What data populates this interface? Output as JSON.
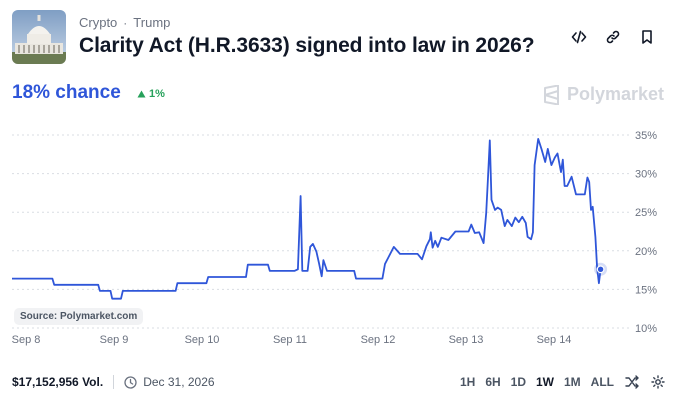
{
  "header": {
    "category": "Crypto",
    "subcategory": "Trump",
    "separator": "·",
    "title": "Clarity Act (H.R.3633) signed into law in 2026?",
    "actions": [
      "embed-icon",
      "link-icon",
      "bookmark-icon"
    ]
  },
  "summary": {
    "chance": "18% chance",
    "delta": "1%",
    "delta_direction": "up",
    "brand": "Polymarket"
  },
  "colors": {
    "accent": "#2f56d9",
    "positive": "#27a15b",
    "grid": "#d9dde3"
  },
  "source_label": "Source: Polymarket.com",
  "footer": {
    "volume": "$17,152,956 Vol.",
    "end_date": "Dec 31, 2026",
    "ranges": [
      "1H",
      "6H",
      "1D",
      "1W",
      "1M",
      "ALL"
    ],
    "active_range": "1W"
  },
  "chart_data": {
    "type": "line",
    "x_ticks": [
      "Sep 8",
      "Sep 9",
      "Sep 10",
      "Sep 11",
      "Sep 12",
      "Sep 13",
      "Sep 14"
    ],
    "y_ticks": [
      "35%",
      "30%",
      "25%",
      "20%",
      "15%",
      "10%"
    ],
    "ylim": [
      10,
      35
    ],
    "xlim": [
      0,
      6.8
    ],
    "grid": "horizontal dashed",
    "series": [
      {
        "points": [
          [
            0,
            16.4
          ],
          [
            0.3,
            16.4
          ],
          [
            0.32,
            15.6
          ],
          [
            0.82,
            15.6
          ],
          [
            0.84,
            14.8
          ],
          [
            0.96,
            14.8
          ],
          [
            0.98,
            13.8
          ],
          [
            1.08,
            13.8
          ],
          [
            1.1,
            14.8
          ],
          [
            1.7,
            14.8
          ],
          [
            1.72,
            15.8
          ],
          [
            2.05,
            15.8
          ],
          [
            2.07,
            16.6
          ],
          [
            2.5,
            16.6
          ],
          [
            2.52,
            18.2
          ],
          [
            2.75,
            18.2
          ],
          [
            2.77,
            17.4
          ],
          [
            3.05,
            17.4
          ],
          [
            3.09,
            17.6
          ],
          [
            3.12,
            27.1
          ],
          [
            3.14,
            17.4
          ],
          [
            3.2,
            17.4
          ],
          [
            3.23,
            20.5
          ],
          [
            3.26,
            20.9
          ],
          [
            3.3,
            19.9
          ],
          [
            3.33,
            18.4
          ],
          [
            3.36,
            16.7
          ],
          [
            3.38,
            18.8
          ],
          [
            3.42,
            17.4
          ],
          [
            3.73,
            17.4
          ],
          [
            3.75,
            16.4
          ],
          [
            4.05,
            16.4
          ],
          [
            4.08,
            18.3
          ],
          [
            4.12,
            19.2
          ],
          [
            4.18,
            20.5
          ],
          [
            4.25,
            19.6
          ],
          [
            4.45,
            19.6
          ],
          [
            4.5,
            18.9
          ],
          [
            4.55,
            20.6
          ],
          [
            4.59,
            21.5
          ],
          [
            4.6,
            22.4
          ],
          [
            4.62,
            20.4
          ],
          [
            4.65,
            21.3
          ],
          [
            4.68,
            20.5
          ],
          [
            4.72,
            21.7
          ],
          [
            4.8,
            21.4
          ],
          [
            4.88,
            22.5
          ],
          [
            5.03,
            22.5
          ],
          [
            5.06,
            23.4
          ],
          [
            5.1,
            22.3
          ],
          [
            5.15,
            22.4
          ],
          [
            5.2,
            21.0
          ],
          [
            5.23,
            24.9
          ],
          [
            5.25,
            29.5
          ],
          [
            5.27,
            34.3
          ],
          [
            5.29,
            26.6
          ],
          [
            5.33,
            25.3
          ],
          [
            5.36,
            25.6
          ],
          [
            5.4,
            25.3
          ],
          [
            5.44,
            23.2
          ],
          [
            5.47,
            24.0
          ],
          [
            5.52,
            23.2
          ],
          [
            5.56,
            24.3
          ],
          [
            5.6,
            23.7
          ],
          [
            5.64,
            24.4
          ],
          [
            5.68,
            23.6
          ],
          [
            5.7,
            21.8
          ],
          [
            5.74,
            21.5
          ],
          [
            5.76,
            22.4
          ],
          [
            5.78,
            31.1
          ],
          [
            5.82,
            34.5
          ],
          [
            5.86,
            33.1
          ],
          [
            5.9,
            31.5
          ],
          [
            5.93,
            33.2
          ],
          [
            5.97,
            31.1
          ],
          [
            6.01,
            32.1
          ],
          [
            6.04,
            32.6
          ],
          [
            6.08,
            30.2
          ],
          [
            6.1,
            31.8
          ],
          [
            6.12,
            28.4
          ],
          [
            6.15,
            28.4
          ],
          [
            6.2,
            29.6
          ],
          [
            6.25,
            27.3
          ],
          [
            6.35,
            27.3
          ],
          [
            6.38,
            29.5
          ],
          [
            6.4,
            28.9
          ],
          [
            6.42,
            25.3
          ],
          [
            6.44,
            25.7
          ],
          [
            6.47,
            21.8
          ],
          [
            6.49,
            17.8
          ],
          [
            6.51,
            15.8
          ],
          [
            6.53,
            17.6
          ]
        ]
      }
    ],
    "current_value": 17.6
  }
}
